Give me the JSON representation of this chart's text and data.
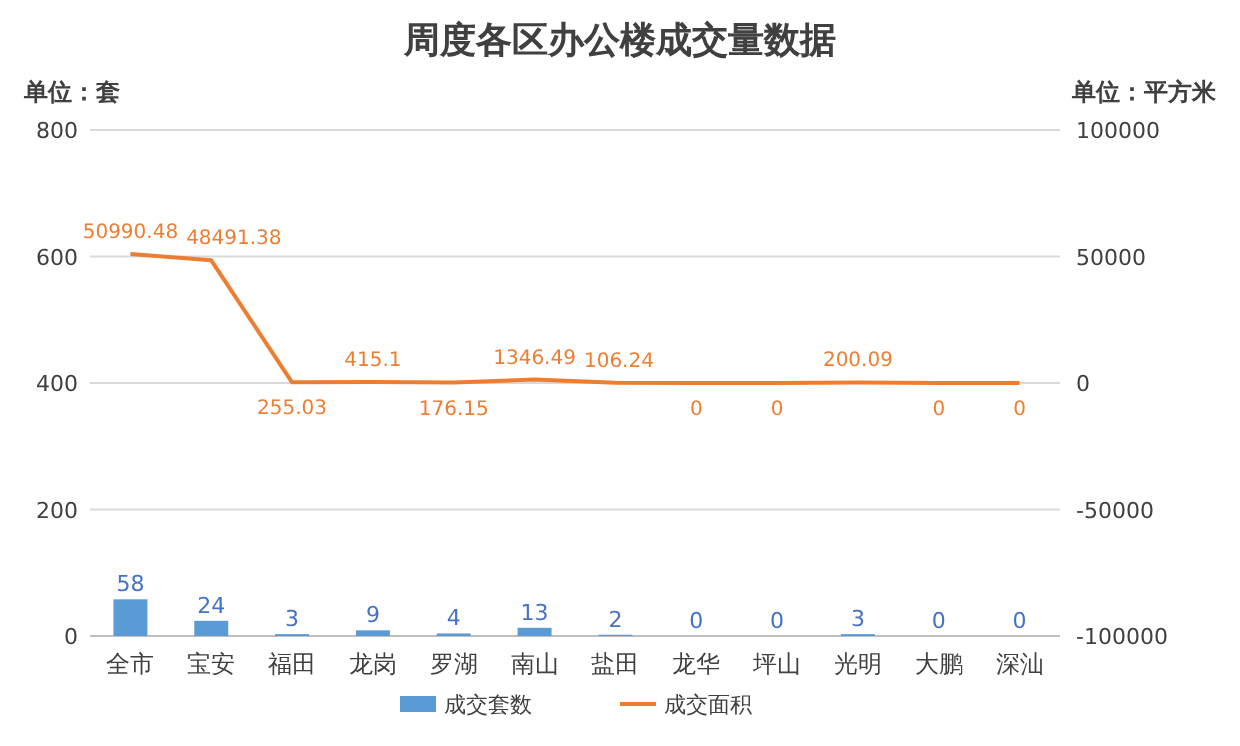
{
  "chart_data": {
    "type": "bar",
    "title": "周度各区办公楼成交量数据",
    "ylabel": "单位：套",
    "y2label": "单位：平方米",
    "categories": [
      "全市",
      "宝安",
      "福田",
      "龙岗",
      "罗湖",
      "南山",
      "盐田",
      "龙华",
      "坪山",
      "光明",
      "大鹏",
      "深汕"
    ],
    "series": [
      {
        "name": "成交套数",
        "color": "#5b9bd5",
        "values": [
          58,
          24,
          3,
          9,
          4,
          13,
          2,
          0,
          0,
          3,
          0,
          0
        ]
      },
      {
        "name": "成交面积",
        "type": "line",
        "axis": "y2",
        "color": "#ed7d31",
        "values": [
          50990.48,
          48491.38,
          255.03,
          415.1,
          176.15,
          1346.49,
          106.24,
          0,
          0,
          200.09,
          0,
          0
        ]
      }
    ],
    "ylim": [
      0,
      800
    ],
    "yticks": [
      0,
      200,
      400,
      600,
      800
    ],
    "y2lim": [
      -100000,
      100000
    ],
    "y2ticks": [
      -100000,
      -50000,
      0,
      50000,
      100000
    ],
    "grid": "y",
    "legend": "bottom",
    "data_labels": true
  }
}
